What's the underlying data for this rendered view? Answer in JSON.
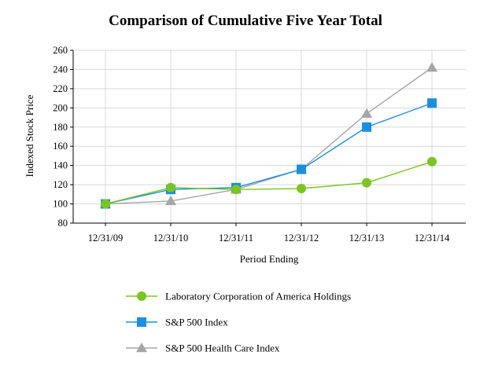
{
  "chart_data": {
    "type": "line",
    "title": "Comparison of Cumulative Five Year Total",
    "xlabel": "Period Ending",
    "ylabel": "Indexed Stock Price",
    "ylim": [
      80,
      260
    ],
    "yticks": [
      80,
      100,
      120,
      140,
      160,
      180,
      200,
      220,
      240,
      260
    ],
    "categories": [
      "12/31/09",
      "12/31/10",
      "12/31/11",
      "12/31/12",
      "12/31/13",
      "12/31/14"
    ],
    "grid": true,
    "legend_position": "bottom",
    "series": [
      {
        "name": "Laboratory Corporation of America Holdings",
        "color": "#7ac520",
        "marker": "circle",
        "values": [
          100,
          117,
          115,
          116,
          122,
          144
        ]
      },
      {
        "name": "S&P 500 Index",
        "color": "#1a8fe3",
        "marker": "square",
        "values": [
          100,
          115,
          117,
          136,
          180,
          205
        ]
      },
      {
        "name": "S&P 500 Health Care Index",
        "color": "#a6a6a6",
        "marker": "triangle",
        "values": [
          100,
          103,
          115,
          136,
          194,
          242
        ]
      }
    ]
  }
}
